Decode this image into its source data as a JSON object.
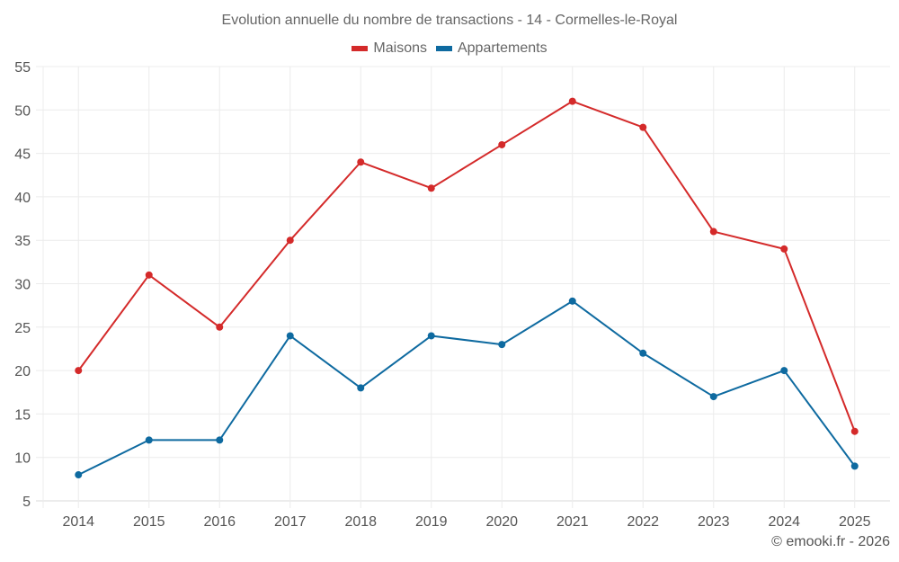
{
  "chart_data": {
    "type": "line",
    "title": "Evolution annuelle du nombre de transactions - 14 - Cormelles-le-Royal",
    "xlabel": "",
    "ylabel": "",
    "categories": [
      "2014",
      "2015",
      "2016",
      "2017",
      "2018",
      "2019",
      "2020",
      "2021",
      "2022",
      "2023",
      "2024",
      "2025"
    ],
    "series": [
      {
        "name": "Maisons",
        "color": "#d42a2a",
        "values": [
          20,
          31,
          25,
          35,
          44,
          41,
          46,
          51,
          48,
          36,
          34,
          13
        ]
      },
      {
        "name": "Appartements",
        "color": "#0e6aa0",
        "values": [
          8,
          12,
          12,
          24,
          18,
          24,
          23,
          28,
          22,
          17,
          20,
          9
        ]
      }
    ],
    "ylim": [
      5,
      55
    ],
    "yticks": [
      "5",
      "10",
      "15",
      "20",
      "25",
      "30",
      "35",
      "40",
      "45",
      "50",
      "55"
    ],
    "grid": true,
    "legend_position": "top-center"
  },
  "credit": "© emooki.fr - 2026"
}
